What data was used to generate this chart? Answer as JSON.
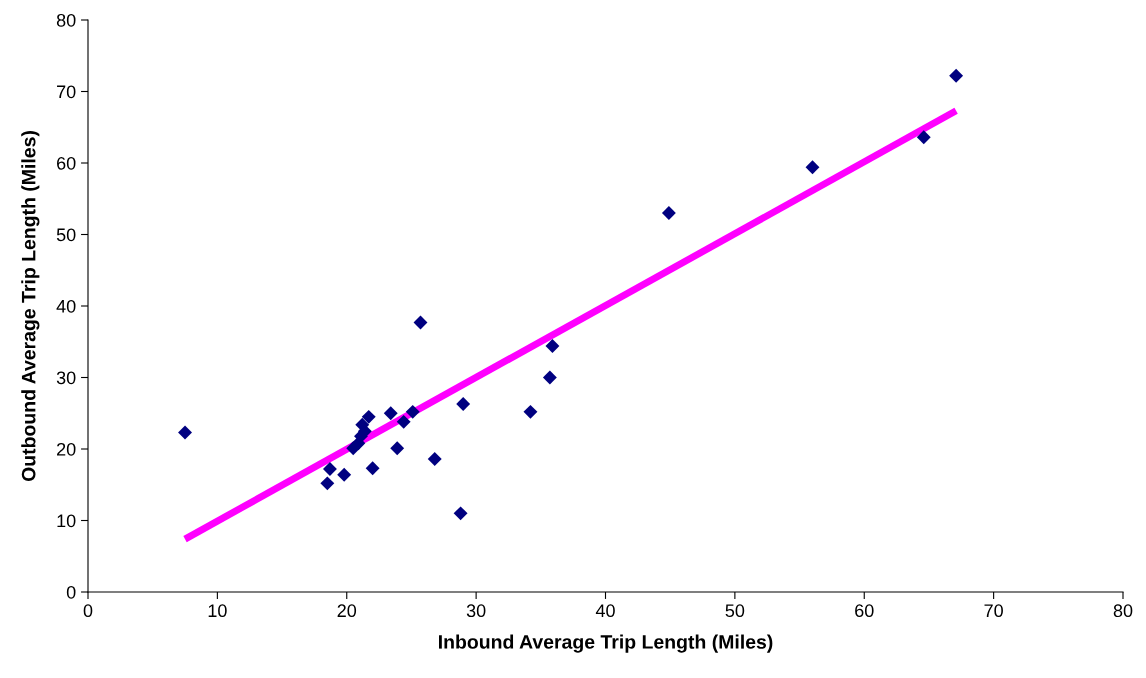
{
  "chart_data": {
    "type": "scatter",
    "xlabel": "Inbound Average Trip Length (Miles)",
    "ylabel": "Outbound Average Trip Length (Miles)",
    "xlim": [
      0,
      80
    ],
    "ylim": [
      0,
      80
    ],
    "xticks": [
      0,
      10,
      20,
      30,
      40,
      50,
      60,
      70,
      80
    ],
    "yticks": [
      0,
      10,
      20,
      30,
      40,
      50,
      60,
      70,
      80
    ],
    "grid": false,
    "series": [
      {
        "color": "#000080",
        "marker": "diamond",
        "x": [
          7.5,
          18.5,
          18.7,
          19.8,
          20.5,
          20.9,
          21.1,
          21.2,
          21.4,
          21.7,
          22.0,
          23.4,
          23.9,
          24.4,
          25.1,
          25.7,
          26.8,
          28.8,
          29.0,
          34.2,
          35.7,
          35.9,
          44.9,
          56.0,
          64.6,
          67.1
        ],
        "values": [
          22.3,
          15.2,
          17.2,
          16.4,
          20.1,
          20.8,
          21.8,
          23.4,
          22.5,
          24.5,
          17.3,
          25.0,
          20.1,
          23.8,
          25.2,
          37.7,
          18.6,
          11.0,
          26.3,
          25.2,
          30.0,
          34.4,
          53.0,
          59.4,
          63.6,
          72.2
        ]
      },
      {
        "type": "line",
        "color": "#ff00ff",
        "marker": "none",
        "line_style": "solid",
        "x": [
          7.5,
          67.1
        ],
        "values": [
          7.4,
          67.3
        ]
      }
    ]
  }
}
